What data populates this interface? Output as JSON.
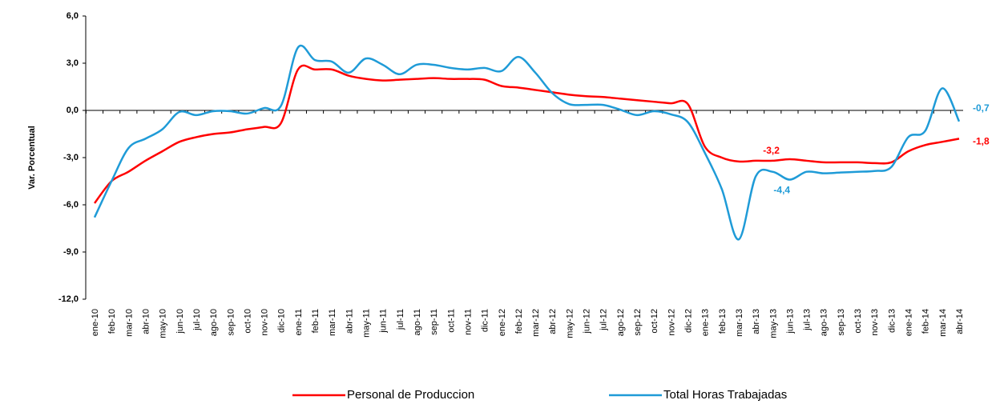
{
  "chart_data": {
    "type": "line",
    "y_label": "Var. Porcentual",
    "categories": [
      "ene-10",
      "feb-10",
      "mar-10",
      "abr-10",
      "may-10",
      "jun-10",
      "jul-10",
      "ago-10",
      "sep-10",
      "oct-10",
      "nov-10",
      "dic-10",
      "ene-11",
      "feb-11",
      "mar-11",
      "abr-11",
      "may-11",
      "jun-11",
      "jul-11",
      "ago-11",
      "sep-11",
      "oct-11",
      "nov-11",
      "dic-11",
      "ene-12",
      "feb-12",
      "mar-12",
      "abr-12",
      "may-12",
      "jun-12",
      "jul-12",
      "ago-12",
      "sep-12",
      "oct-12",
      "nov-12",
      "dic-12",
      "ene-13",
      "feb-13",
      "mar-13",
      "abr-13",
      "may-13",
      "jun-13",
      "jul-13",
      "ago-13",
      "sep-13",
      "oct-13",
      "nov-13",
      "dic-13",
      "ene-14",
      "feb-14",
      "mar-14",
      "abr-14"
    ],
    "series": [
      {
        "name": "Personal de Produccion",
        "color": "#ff0000",
        "values": [
          -5.9,
          -4.5,
          -3.9,
          -3.2,
          -2.6,
          -2.0,
          -1.7,
          -1.5,
          -1.4,
          -1.2,
          -1.05,
          -0.8,
          2.6,
          2.6,
          2.6,
          2.2,
          2.0,
          1.9,
          1.95,
          2.0,
          2.05,
          2.0,
          2.0,
          1.95,
          1.55,
          1.45,
          1.3,
          1.15,
          1.0,
          0.9,
          0.85,
          0.75,
          0.65,
          0.55,
          0.45,
          0.4,
          -2.3,
          -3.0,
          -3.25,
          -3.2,
          -3.2,
          -3.1,
          -3.2,
          -3.3,
          -3.3,
          -3.3,
          -3.35,
          -3.3,
          -2.6,
          -2.2,
          -2.0,
          -1.8
        ],
        "value_labels": [
          null,
          null,
          null,
          null,
          null,
          null,
          null,
          null,
          null,
          null,
          null,
          null,
          null,
          null,
          null,
          null,
          null,
          null,
          null,
          null,
          null,
          null,
          null,
          null,
          null,
          null,
          null,
          null,
          null,
          null,
          null,
          null,
          null,
          null,
          null,
          null,
          null,
          null,
          null,
          null,
          "-3,2",
          null,
          null,
          null,
          null,
          null,
          null,
          null,
          null,
          null,
          null,
          "-1,8"
        ]
      },
      {
        "name": "Total Horas Trabajadas",
        "color": "#1f9bd7",
        "values": [
          -6.8,
          -4.5,
          -2.4,
          -1.8,
          -1.2,
          -0.1,
          -0.3,
          -0.05,
          -0.05,
          -0.2,
          0.15,
          0.3,
          4.0,
          3.2,
          3.1,
          2.4,
          3.3,
          2.9,
          2.3,
          2.9,
          2.9,
          2.7,
          2.6,
          2.7,
          2.5,
          3.4,
          2.4,
          1.1,
          0.4,
          0.35,
          0.35,
          0.05,
          -0.3,
          -0.05,
          -0.25,
          -0.75,
          -2.7,
          -5.0,
          -8.2,
          -4.2,
          -3.9,
          -4.4,
          -3.9,
          -4.0,
          -3.95,
          -3.9,
          -3.85,
          -3.6,
          -1.7,
          -1.3,
          1.4,
          -0.7
        ],
        "value_labels": [
          null,
          null,
          null,
          null,
          null,
          null,
          null,
          null,
          null,
          null,
          null,
          null,
          null,
          null,
          null,
          null,
          null,
          null,
          null,
          null,
          null,
          null,
          null,
          null,
          null,
          null,
          null,
          null,
          null,
          null,
          null,
          null,
          null,
          null,
          null,
          null,
          null,
          null,
          null,
          null,
          null,
          "-4,4",
          null,
          null,
          null,
          null,
          null,
          null,
          null,
          null,
          null,
          "-0,7"
        ]
      }
    ],
    "ylim": [
      -12,
      6
    ],
    "yticks": [
      {
        "value": -12,
        "label": "-12,0"
      },
      {
        "value": -9,
        "label": "-9,0"
      },
      {
        "value": -6,
        "label": "-6,0"
      },
      {
        "value": -3,
        "label": "-3,0"
      },
      {
        "value": 0,
        "label": "0,0"
      },
      {
        "value": 3,
        "label": "3,0"
      },
      {
        "value": 6,
        "label": "6,0"
      }
    ],
    "grid": false,
    "legend": "bottom"
  }
}
